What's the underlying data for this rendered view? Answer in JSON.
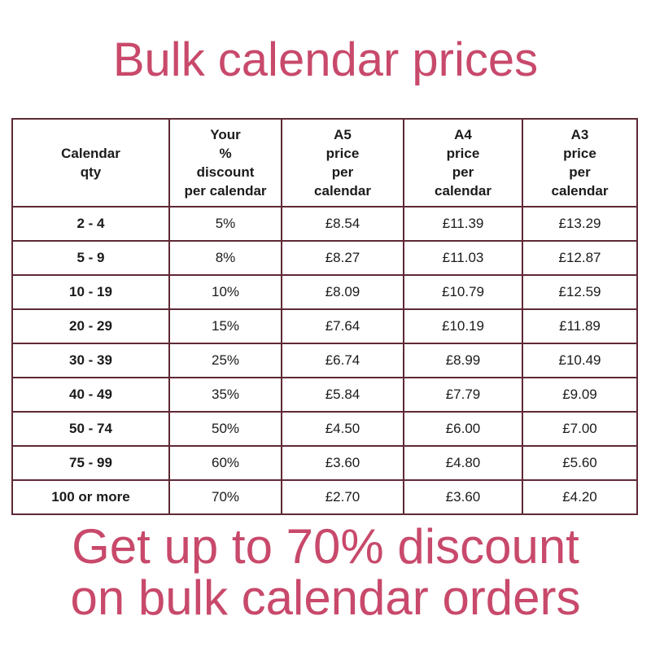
{
  "page": {
    "title": "Bulk calendar prices",
    "footer": "Get up to 70% discount\non bulk calendar orders",
    "colors": {
      "accent": "#c8496b",
      "table_border": "#5e2935",
      "cell_text": "#1b1b1b",
      "background": "#ffffff"
    }
  },
  "chart_data": {
    "type": "table",
    "title": "Bulk calendar prices",
    "caption": "Get up to 70% discount on bulk calendar orders",
    "columns": [
      {
        "id": "qty",
        "header": "Calendar\nqty"
      },
      {
        "id": "discount",
        "header": "Your\n%\ndiscount\nper calendar"
      },
      {
        "id": "a5_price",
        "header": "A5\nprice\nper\ncalendar"
      },
      {
        "id": "a4_price",
        "header": "A4\nprice\nper\ncalendar"
      },
      {
        "id": "a3_price",
        "header": "A3\nprice\nper\ncalendar"
      }
    ],
    "rows": [
      [
        "2 - 4",
        "5%",
        "£8.54",
        "£11.39",
        "£13.29"
      ],
      [
        "5 - 9",
        "8%",
        "£8.27",
        "£11.03",
        "£12.87"
      ],
      [
        "10 - 19",
        "10%",
        "£8.09",
        "£10.79",
        "£12.59"
      ],
      [
        "20 - 29",
        "15%",
        "£7.64",
        "£10.19",
        "£11.89"
      ],
      [
        "30 - 39",
        "25%",
        "£6.74",
        "£8.99",
        "£10.49"
      ],
      [
        "40 - 49",
        "35%",
        "£5.84",
        "£7.79",
        "£9.09"
      ],
      [
        "50 - 74",
        "50%",
        "£4.50",
        "£6.00",
        "£7.00"
      ],
      [
        "75 - 99",
        "60%",
        "£3.60",
        "£4.80",
        "£5.60"
      ],
      [
        "100 or more",
        "70%",
        "£2.70",
        "£3.60",
        "£4.20"
      ]
    ]
  }
}
